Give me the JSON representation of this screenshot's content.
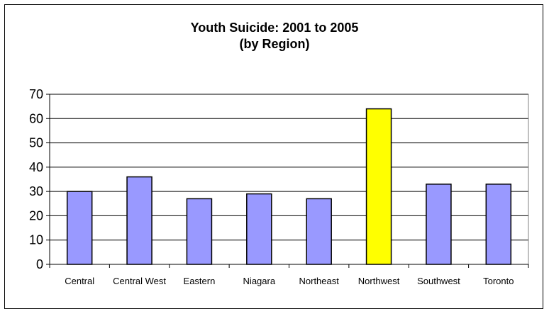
{
  "chart_data": {
    "type": "bar",
    "title": "Youth Suicide:  2001 to 2005",
    "subtitle": "(by Region)",
    "categories": [
      "Central",
      "Central West",
      "Eastern",
      "Niagara",
      "Northeast",
      "Northwest",
      "Southwest",
      "Toronto"
    ],
    "values": [
      30,
      36,
      27,
      29,
      27,
      64,
      33,
      33
    ],
    "ylim": [
      0,
      70
    ],
    "yticks": [
      0,
      10,
      20,
      30,
      40,
      50,
      60,
      70
    ],
    "grid": true,
    "colors": {
      "bar": "#9999ff",
      "highlight": "#ffff00",
      "highlight_category": "Northwest",
      "gridline": "#000000"
    }
  }
}
